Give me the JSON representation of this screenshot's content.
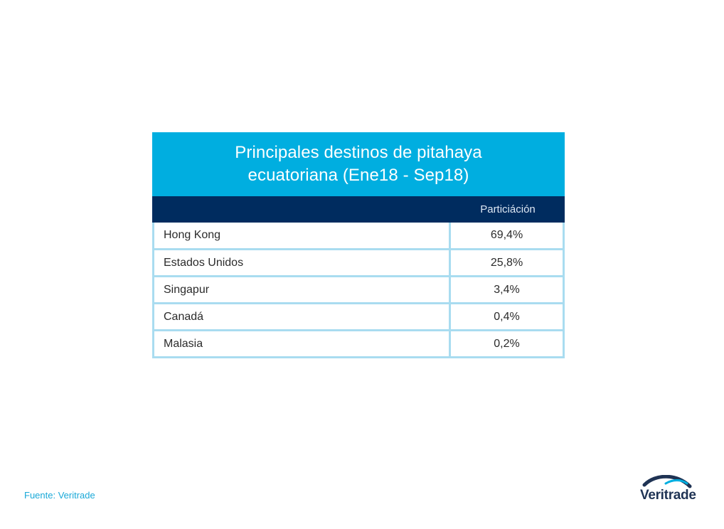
{
  "chart_data": {
    "type": "table",
    "title": "Principales destinos de pitahaya ecuatoriana (Ene18 - Sep18)",
    "columns": [
      "",
      "Particiáción"
    ],
    "rows": [
      {
        "country": "Hong Kong",
        "share": "69,4%"
      },
      {
        "country": "Estados Unidos",
        "share": "25,8%"
      },
      {
        "country": "Singapur",
        "share": "3,4%"
      },
      {
        "country": "Canadá",
        "share": "0,4%"
      },
      {
        "country": "Malasia",
        "share": "0,2%"
      }
    ]
  },
  "footer": {
    "source": "Fuente: Veritrade"
  },
  "logo": {
    "brand": "Veritrade",
    "icon": "veritrade-swoosh-icon"
  },
  "colors": {
    "title_bg": "#00aee0",
    "header_bg": "#002c5f",
    "grid": "#a9dcf0",
    "source_text": "#1aa9d8",
    "logo_text": "#1f3354"
  }
}
